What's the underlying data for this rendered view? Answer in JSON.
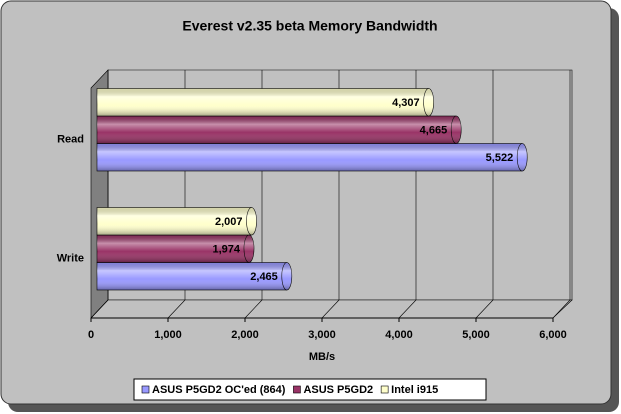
{
  "chart_data": {
    "type": "bar",
    "orientation": "horizontal",
    "style": "3d-cylinder",
    "title": "Everest v2.35 beta Memory Bandwidth",
    "x_label": "MB/s",
    "categories": [
      "Read",
      "Write"
    ],
    "series": [
      {
        "name": "ASUS P5GD2 OC'ed (864)",
        "color": "#9999ff",
        "values": [
          5522,
          2465
        ],
        "value_labels": [
          "5,522",
          "2,465"
        ]
      },
      {
        "name": "ASUS P5GD2",
        "color": "#993366",
        "values": [
          4665,
          1974
        ],
        "value_labels": [
          "4,665",
          "1,974"
        ]
      },
      {
        "name": "Intel i915",
        "color": "#ffffcc",
        "values": [
          4307,
          2007
        ],
        "value_labels": [
          "4,307",
          "2,007"
        ]
      }
    ],
    "xlim": [
      0,
      6000
    ],
    "xticks": [
      0,
      {
        "value": 1000,
        "label": "1,000"
      },
      {
        "value": 2000,
        "label": "2,000"
      },
      {
        "value": 3000,
        "label": "3,000"
      },
      {
        "value": 4000,
        "label": "4,000"
      },
      {
        "value": 5000,
        "label": "5,000"
      },
      {
        "value": 6000,
        "label": "6,000"
      }
    ],
    "grid": true,
    "legend": "bottom"
  }
}
